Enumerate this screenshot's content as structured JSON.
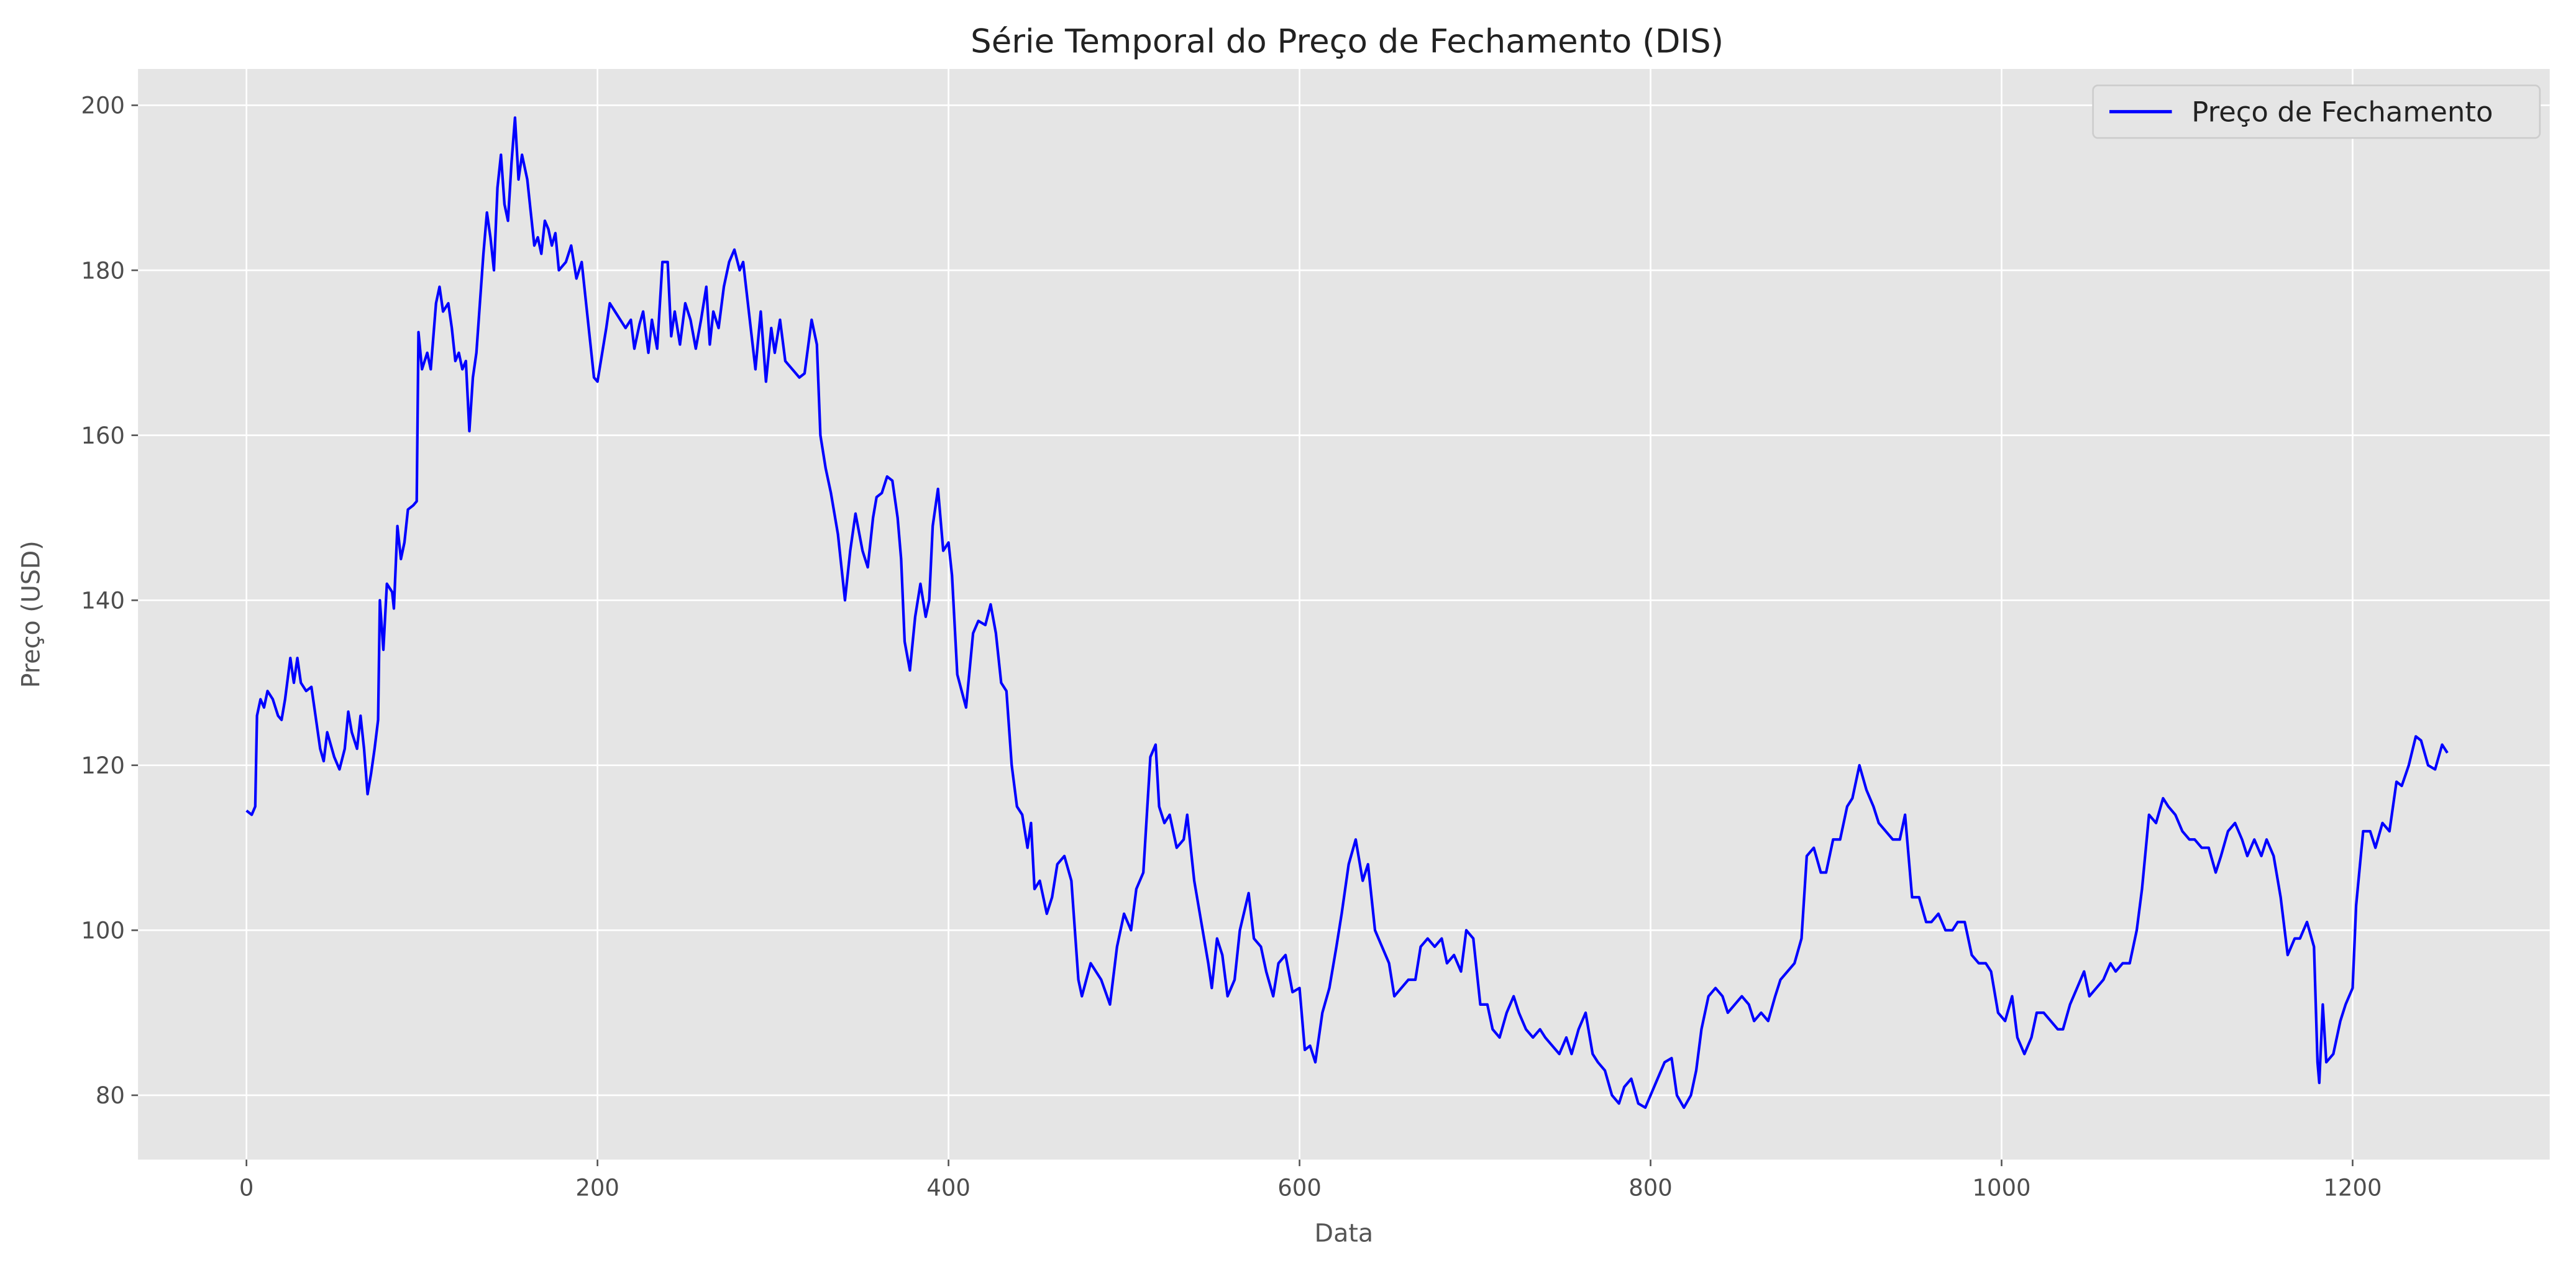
{
  "chart_data": {
    "type": "line",
    "title": "Série Temporal do Preço de Fechamento (DIS)",
    "xlabel": "Data",
    "ylabel": "Preço (USD)",
    "x": [
      0,
      3,
      5,
      6,
      8,
      10,
      12,
      15,
      18,
      20,
      22,
      25,
      27,
      29,
      31,
      34,
      37,
      40,
      42,
      44,
      46,
      50,
      53,
      56,
      58,
      60,
      63,
      65,
      67,
      69,
      71,
      73,
      75,
      76,
      78,
      80,
      83,
      84,
      86,
      88,
      90,
      92,
      95,
      97,
      98,
      100,
      103,
      105,
      108,
      110,
      112,
      115,
      117,
      119,
      121,
      123,
      125,
      127,
      129,
      131,
      133,
      135,
      137,
      139,
      141,
      143,
      145,
      147,
      149,
      151,
      153,
      155,
      157,
      160,
      162,
      164,
      166,
      168,
      170,
      172,
      174,
      176,
      178,
      182,
      185,
      188,
      191,
      194,
      196,
      198,
      200,
      205,
      207,
      210,
      213,
      216,
      219,
      221,
      224,
      226,
      229,
      231,
      234,
      237,
      240,
      242,
      244,
      247,
      250,
      253,
      256,
      259,
      262,
      264,
      266,
      269,
      272,
      275,
      278,
      281,
      283,
      290,
      293,
      296,
      299,
      301,
      304,
      307,
      311,
      315,
      318,
      322,
      325,
      327,
      330,
      333,
      337,
      341,
      344,
      347,
      351,
      354,
      357,
      359,
      362,
      365,
      368,
      371,
      373,
      375,
      378,
      381,
      384,
      387,
      389,
      391,
      394,
      397,
      400,
      402,
      405,
      410,
      414,
      417,
      421,
      424,
      427,
      430,
      433,
      436,
      439,
      442,
      445,
      447,
      449,
      452,
      456,
      459,
      462,
      466,
      470,
      474,
      476,
      481,
      487,
      492,
      496,
      500,
      504,
      507,
      511,
      515,
      518,
      520,
      523,
      526,
      530,
      534,
      536,
      540,
      544,
      548,
      550,
      553,
      556,
      559,
      563,
      566,
      571,
      574,
      578,
      581,
      585,
      588,
      592,
      596,
      600,
      603,
      606,
      609,
      613,
      617,
      621,
      624,
      628,
      632,
      636,
      639,
      643,
      647,
      651,
      654,
      658,
      662,
      666,
      669,
      673,
      677,
      681,
      684,
      688,
      692,
      695,
      699,
      703,
      707,
      710,
      714,
      718,
      722,
      725,
      729,
      733,
      737,
      740,
      744,
      748,
      752,
      755,
      759,
      763,
      767,
      770,
      774,
      778,
      782,
      785,
      789,
      793,
      797,
      800,
      804,
      808,
      812,
      815,
      819,
      823,
      826,
      829,
      833,
      837,
      841,
      844,
      848,
      852,
      856,
      859,
      863,
      867,
      871,
      874,
      878,
      882,
      886,
      889,
      893,
      897,
      900,
      904,
      908,
      912,
      915,
      919,
      923,
      927,
      930,
      934,
      938,
      942,
      945,
      949,
      953,
      957,
      960,
      964,
      968,
      972,
      975,
      979,
      983,
      987,
      991,
      994,
      998,
      1002,
      1006,
      1009,
      1013,
      1017,
      1020,
      1024,
      1028,
      1032,
      1035,
      1039,
      1043,
      1047,
      1050,
      1054,
      1058,
      1062,
      1065,
      1069,
      1073,
      1077,
      1080,
      1084,
      1088,
      1092,
      1095,
      1099,
      1103,
      1107,
      1110,
      1114,
      1118,
      1122,
      1125,
      1129,
      1133,
      1137,
      1140,
      1144,
      1148,
      1151,
      1155,
      1159,
      1163,
      1167,
      1170,
      1174,
      1178,
      1180,
      1181,
      1183,
      1185,
      1189,
      1193,
      1196,
      1200,
      1202,
      1206,
      1210,
      1213,
      1217,
      1221,
      1225,
      1228,
      1232,
      1236,
      1239,
      1243,
      1247,
      1251,
      1254
    ],
    "series": [
      {
        "name": "Preço de Fechamento",
        "color": "#0000ff",
        "values": [
          114.5,
          114,
          115,
          126,
          128,
          127,
          129,
          128,
          126,
          125.5,
          128,
          133,
          130,
          133,
          130,
          129,
          129.5,
          125,
          122,
          120.5,
          124,
          121,
          119.5,
          122,
          126.5,
          124,
          122,
          126,
          122,
          116.5,
          119,
          122,
          125.5,
          140,
          134,
          142,
          141,
          139,
          149,
          145,
          147,
          151,
          151.5,
          152,
          172.5,
          168,
          170,
          168,
          176,
          178,
          175,
          176,
          173,
          169,
          170,
          168,
          169,
          160.5,
          167,
          170,
          176,
          182,
          187,
          184,
          180,
          190,
          194,
          188,
          186,
          193,
          198.5,
          191,
          194,
          191,
          187,
          183,
          184,
          182,
          186,
          185,
          183,
          184.5,
          180,
          181,
          183,
          179,
          181,
          175,
          171,
          167,
          166.5,
          173,
          176,
          175,
          174,
          173,
          174,
          170.5,
          173.5,
          175,
          170,
          174,
          170.5,
          181,
          181,
          172,
          175,
          171,
          176,
          174,
          170.5,
          174,
          178,
          171,
          175,
          173,
          178,
          181,
          182.5,
          180,
          181,
          168,
          175,
          166.5,
          173,
          170,
          174,
          169,
          168,
          167,
          167.5,
          174,
          171,
          160,
          156,
          153,
          148,
          140,
          146,
          150.5,
          146,
          144,
          150,
          152.5,
          153,
          155,
          154.5,
          150,
          145,
          135,
          131.5,
          138,
          142,
          138,
          140,
          149,
          153.5,
          146,
          147,
          143,
          131,
          127,
          136,
          137.5,
          137,
          139.5,
          136,
          130,
          129,
          120,
          115,
          114,
          110,
          113,
          105,
          106,
          102,
          104,
          108,
          109,
          106,
          94,
          92,
          96,
          94,
          91,
          98,
          102,
          100,
          105,
          107,
          121,
          122.5,
          115,
          113,
          114,
          110,
          111,
          114,
          106,
          101,
          96,
          93,
          99,
          97,
          92,
          94,
          100,
          104.5,
          99,
          98,
          95,
          92,
          96,
          97,
          92.5,
          93,
          85.5,
          86,
          84,
          90,
          93,
          98,
          102,
          108,
          111,
          106,
          108,
          100,
          98,
          96,
          92,
          93,
          94,
          94,
          98,
          99,
          98,
          99,
          96,
          97,
          95,
          100,
          99,
          91,
          91,
          88,
          87,
          90,
          92,
          90,
          88,
          87,
          88,
          87,
          86,
          85,
          87,
          85,
          88,
          90,
          85,
          84,
          83,
          80,
          79,
          81,
          82,
          79,
          78.5,
          80,
          82,
          84,
          84.5,
          80,
          78.5,
          80,
          83,
          88,
          92,
          93,
          92,
          90,
          91,
          92,
          91,
          89,
          90,
          89,
          92,
          94,
          95,
          96,
          99,
          109,
          110,
          107,
          107,
          111,
          111,
          115,
          116,
          120,
          117,
          115,
          113,
          112,
          111,
          111,
          114,
          104,
          104,
          101,
          101,
          102,
          100,
          100,
          101,
          101,
          97,
          96,
          96,
          95,
          90,
          89,
          92,
          87,
          85,
          87,
          90,
          90,
          89,
          88,
          88,
          91,
          93,
          95,
          92,
          93,
          94,
          96,
          95,
          96,
          96,
          100,
          105,
          114,
          113,
          116,
          115,
          114,
          112,
          111,
          111,
          110,
          110,
          107,
          109,
          112,
          113,
          111,
          109,
          111,
          109,
          111,
          109,
          104,
          97,
          99,
          99,
          101,
          98,
          84,
          81.5,
          91,
          84,
          85,
          89,
          91,
          93,
          103,
          112,
          112,
          110,
          113,
          112,
          118,
          117.5,
          120,
          123.5,
          123,
          120,
          119.5,
          122.5,
          121.5
        ]
      }
    ],
    "xlim": [
      -61.8,
      1312.3
    ],
    "ylim": [
      72.2,
      204.4
    ],
    "xticks": [
      0,
      200,
      400,
      600,
      800,
      1000,
      1200
    ],
    "yticks": [
      80,
      100,
      120,
      140,
      160,
      180,
      200
    ],
    "grid": true,
    "legend": "upper right",
    "background": "#e5e5e5"
  }
}
